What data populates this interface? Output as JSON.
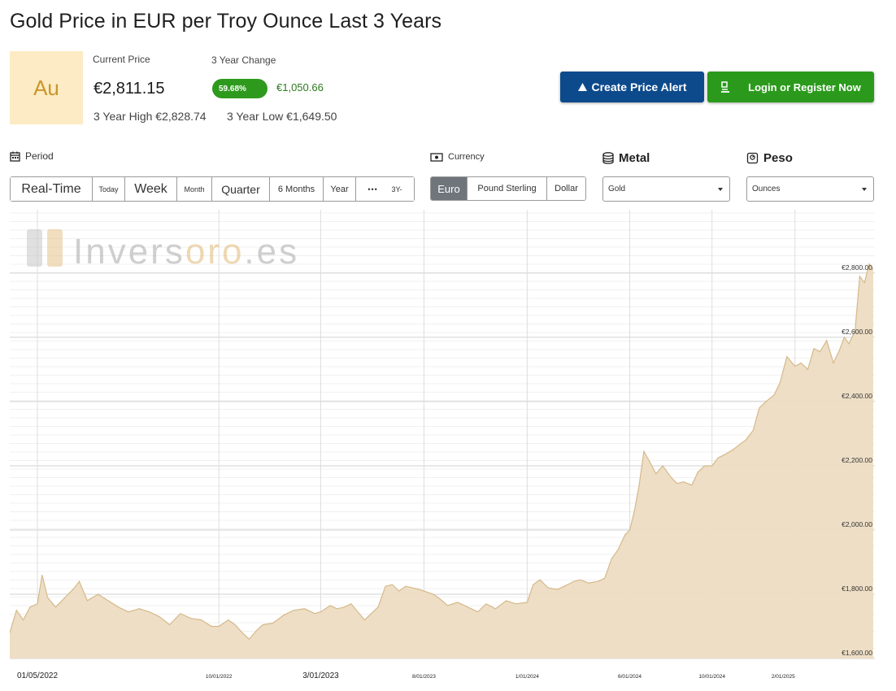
{
  "page": {
    "title": "Gold Price in EUR per Troy Ounce Last 3 Years"
  },
  "badge": {
    "symbol": "Au"
  },
  "stats": {
    "current_label": "Current Price",
    "current_value": "€2,811.15",
    "change_label": "3 Year Change",
    "change_pct": "59.68%",
    "change_abs": "€1,050.66",
    "high_text": "3 Year High €2,828.74",
    "low_text": "3 Year Low €1,649.50"
  },
  "actions": {
    "alert_label": "Create Price Alert",
    "login_label": "Login or Register Now"
  },
  "filters": {
    "period_label": "Period",
    "currency_label": "Currency",
    "metal_label": "Metal",
    "weight_label": "Peso",
    "periods": [
      "Real-Time",
      "Today",
      "Week",
      "Month",
      "Quarter",
      "6 Months",
      "Year",
      "•••",
      "3Y-"
    ],
    "currencies": [
      "Euro",
      "Pound Sterling",
      "Dollar"
    ],
    "active_currency": "Euro",
    "metal_selected": "Gold",
    "weight_selected": "Ounces"
  },
  "watermark": {
    "prefix": "Invers",
    "accent": "oro",
    "suffix": ".es"
  },
  "colors": {
    "area_fill": "#ecdcc2",
    "area_line": "#d6b98a",
    "accent_blue": "#0c4a8c",
    "accent_green": "#2b9a1c",
    "badge_bg": "#fcebc4",
    "badge_text": "#c9962a"
  },
  "chart_data": {
    "type": "area",
    "title": "",
    "xlabel": "",
    "ylabel": "",
    "ylim": [
      1600,
      2820
    ],
    "y_ticks": [
      1600,
      1800,
      2000,
      2200,
      2400,
      2600,
      2800
    ],
    "y_tick_labels": [
      "€1,600.00",
      "€1,800.00",
      "€2,000.00",
      "€2,200.00",
      "€2,400.00",
      "€2,600.00",
      "€2,800.00"
    ],
    "x_tick_labels": [
      "01/05/2022",
      "10/01/2022",
      "3/01/2023",
      "8/01/2023",
      "1/01/2024",
      "6/01/2024",
      "10/01/2024",
      "2/01/2025"
    ],
    "x_tick_dates": [
      "2022-01-05",
      "2022-10-01",
      "2023-03-01",
      "2023-08-01",
      "2024-01-01",
      "2024-06-01",
      "2024-10-01",
      "2025-02-01"
    ],
    "grid": true,
    "series": [
      {
        "points": [
          [
            "2021-11-25",
            1680
          ],
          [
            "2021-12-05",
            1750
          ],
          [
            "2021-12-15",
            1720
          ],
          [
            "2021-12-25",
            1760
          ],
          [
            "2022-01-05",
            1770
          ],
          [
            "2022-01-12",
            1860
          ],
          [
            "2022-01-20",
            1790
          ],
          [
            "2022-02-01",
            1760
          ],
          [
            "2022-02-15",
            1790
          ],
          [
            "2022-03-01",
            1820
          ],
          [
            "2022-03-08",
            1840
          ],
          [
            "2022-03-20",
            1780
          ],
          [
            "2022-04-05",
            1800
          ],
          [
            "2022-04-20",
            1780
          ],
          [
            "2022-05-05",
            1760
          ],
          [
            "2022-05-20",
            1745
          ],
          [
            "2022-06-05",
            1755
          ],
          [
            "2022-06-20",
            1745
          ],
          [
            "2022-07-05",
            1730
          ],
          [
            "2022-07-20",
            1705
          ],
          [
            "2022-08-05",
            1740
          ],
          [
            "2022-08-20",
            1725
          ],
          [
            "2022-09-05",
            1720
          ],
          [
            "2022-09-20",
            1700
          ],
          [
            "2022-10-01",
            1700
          ],
          [
            "2022-10-15",
            1720
          ],
          [
            "2022-10-25",
            1705
          ],
          [
            "2022-11-05",
            1680
          ],
          [
            "2022-11-15",
            1660
          ],
          [
            "2022-11-25",
            1685
          ],
          [
            "2022-12-05",
            1705
          ],
          [
            "2022-12-20",
            1710
          ],
          [
            "2023-01-05",
            1735
          ],
          [
            "2023-01-20",
            1750
          ],
          [
            "2023-02-05",
            1755
          ],
          [
            "2023-02-20",
            1740
          ],
          [
            "2023-03-01",
            1745
          ],
          [
            "2023-03-15",
            1765
          ],
          [
            "2023-03-25",
            1755
          ],
          [
            "2023-04-05",
            1760
          ],
          [
            "2023-04-15",
            1770
          ],
          [
            "2023-04-25",
            1745
          ],
          [
            "2023-05-05",
            1720
          ],
          [
            "2023-05-15",
            1740
          ],
          [
            "2023-05-25",
            1760
          ],
          [
            "2023-06-05",
            1825
          ],
          [
            "2023-06-15",
            1830
          ],
          [
            "2023-06-25",
            1810
          ],
          [
            "2023-07-05",
            1825
          ],
          [
            "2023-07-15",
            1820
          ],
          [
            "2023-07-25",
            1815
          ],
          [
            "2023-08-01",
            1810
          ],
          [
            "2023-08-15",
            1800
          ],
          [
            "2023-08-25",
            1785
          ],
          [
            "2023-09-05",
            1765
          ],
          [
            "2023-09-20",
            1775
          ],
          [
            "2023-10-05",
            1760
          ],
          [
            "2023-10-20",
            1745
          ],
          [
            "2023-11-01",
            1770
          ],
          [
            "2023-11-15",
            1755
          ],
          [
            "2023-12-01",
            1780
          ],
          [
            "2023-12-15",
            1770
          ],
          [
            "2024-01-01",
            1775
          ],
          [
            "2024-01-10",
            1830
          ],
          [
            "2024-01-20",
            1845
          ],
          [
            "2024-02-01",
            1820
          ],
          [
            "2024-02-15",
            1815
          ],
          [
            "2024-03-01",
            1830
          ],
          [
            "2024-03-10",
            1840
          ],
          [
            "2024-03-20",
            1845
          ],
          [
            "2024-04-01",
            1835
          ],
          [
            "2024-04-15",
            1840
          ],
          [
            "2024-04-25",
            1850
          ],
          [
            "2024-05-05",
            1910
          ],
          [
            "2024-05-15",
            1940
          ],
          [
            "2024-05-25",
            1985
          ],
          [
            "2024-06-01",
            2000
          ],
          [
            "2024-06-08",
            2060
          ],
          [
            "2024-06-15",
            2140
          ],
          [
            "2024-06-22",
            2245
          ],
          [
            "2024-06-30",
            2215
          ],
          [
            "2024-07-10",
            2175
          ],
          [
            "2024-07-20",
            2200
          ],
          [
            "2024-08-01",
            2165
          ],
          [
            "2024-08-10",
            2145
          ],
          [
            "2024-08-20",
            2150
          ],
          [
            "2024-09-01",
            2140
          ],
          [
            "2024-09-10",
            2180
          ],
          [
            "2024-09-20",
            2200
          ],
          [
            "2024-10-01",
            2200
          ],
          [
            "2024-10-10",
            2225
          ],
          [
            "2024-10-20",
            2235
          ],
          [
            "2024-11-01",
            2250
          ],
          [
            "2024-11-10",
            2265
          ],
          [
            "2024-11-20",
            2280
          ],
          [
            "2024-12-01",
            2310
          ],
          [
            "2024-12-10",
            2380
          ],
          [
            "2024-12-20",
            2400
          ],
          [
            "2025-01-01",
            2420
          ],
          [
            "2025-01-10",
            2460
          ],
          [
            "2025-01-20",
            2540
          ],
          [
            "2025-02-01",
            2510
          ],
          [
            "2025-02-10",
            2520
          ],
          [
            "2025-02-20",
            2500
          ],
          [
            "2025-03-01",
            2565
          ],
          [
            "2025-03-10",
            2555
          ],
          [
            "2025-03-20",
            2590
          ],
          [
            "2025-03-30",
            2520
          ],
          [
            "2025-04-08",
            2560
          ],
          [
            "2025-04-15",
            2600
          ],
          [
            "2025-04-22",
            2580
          ],
          [
            "2025-05-01",
            2620
          ],
          [
            "2025-05-08",
            2790
          ],
          [
            "2025-05-15",
            2770
          ],
          [
            "2025-05-22",
            2828
          ],
          [
            "2025-05-28",
            2811
          ]
        ]
      }
    ]
  }
}
